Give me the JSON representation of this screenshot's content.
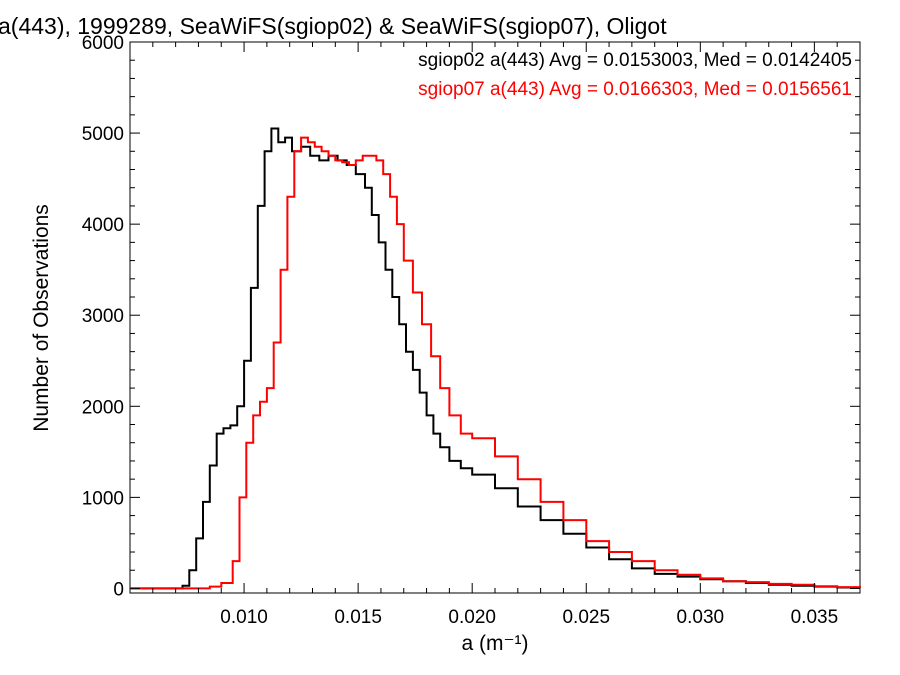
{
  "chart_data": {
    "type": "line",
    "title": "a(443), 1999289, SeaWiFS(sgiop02) & SeaWiFS(sgiop07), Oligot",
    "xlabel": "a (m⁻¹)",
    "ylabel": "Number of Observations",
    "xlim": [
      0.005,
      0.037
    ],
    "ylim": [
      -50,
      6000
    ],
    "xticks": [
      0.01,
      0.015,
      0.02,
      0.025,
      0.03,
      0.035
    ],
    "xtick_labels": [
      "0.010",
      "0.015",
      "0.020",
      "0.025",
      "0.030",
      "0.035"
    ],
    "yticks": [
      0,
      1000,
      2000,
      3000,
      4000,
      5000,
      6000
    ],
    "ytick_labels": [
      "0",
      "1000",
      "2000",
      "3000",
      "4000",
      "5000",
      "6000"
    ],
    "grid": false,
    "step": true,
    "legend": {
      "placement": "top-right",
      "entries": [
        "sgiop02 a(443) Avg = 0.0153003, Med = 0.0142405",
        "sgiop07 a(443) Avg = 0.0166303, Med = 0.0156561"
      ]
    },
    "series": [
      {
        "color": "#000000",
        "x": [
          0.005,
          0.007,
          0.0073,
          0.0076,
          0.0079,
          0.0082,
          0.0085,
          0.0088,
          0.0091,
          0.0094,
          0.0097,
          0.01,
          0.0103,
          0.0106,
          0.0109,
          0.0112,
          0.0115,
          0.0118,
          0.0121,
          0.0125,
          0.0129,
          0.0133,
          0.0137,
          0.0141,
          0.0145,
          0.0149,
          0.0153,
          0.0156,
          0.0159,
          0.0162,
          0.0165,
          0.0168,
          0.0171,
          0.0174,
          0.0177,
          0.018,
          0.0183,
          0.0186,
          0.019,
          0.0195,
          0.02,
          0.021,
          0.022,
          0.023,
          0.024,
          0.025,
          0.026,
          0.027,
          0.028,
          0.029,
          0.03,
          0.031,
          0.032,
          0.033,
          0.034,
          0.035,
          0.036,
          0.037
        ],
        "values": [
          0,
          0,
          30,
          200,
          550,
          950,
          1350,
          1700,
          1760,
          1790,
          2000,
          2500,
          3300,
          4200,
          4800,
          5050,
          4900,
          4950,
          4800,
          4850,
          4750,
          4700,
          4750,
          4700,
          4650,
          4550,
          4400,
          4100,
          3800,
          3500,
          3200,
          2900,
          2600,
          2400,
          2150,
          1900,
          1700,
          1550,
          1400,
          1320,
          1250,
          1100,
          900,
          750,
          600,
          450,
          320,
          220,
          160,
          130,
          100,
          80,
          60,
          40,
          30,
          20,
          10,
          5
        ]
      },
      {
        "color": "#ff0000",
        "x": [
          0.005,
          0.008,
          0.0085,
          0.009,
          0.0095,
          0.0098,
          0.0101,
          0.0104,
          0.0107,
          0.011,
          0.0113,
          0.0116,
          0.0119,
          0.0122,
          0.0125,
          0.0128,
          0.0131,
          0.0134,
          0.0137,
          0.014,
          0.0143,
          0.0146,
          0.0149,
          0.0152,
          0.0155,
          0.0158,
          0.0161,
          0.0164,
          0.0167,
          0.017,
          0.0174,
          0.0178,
          0.0182,
          0.0186,
          0.019,
          0.0195,
          0.02,
          0.021,
          0.022,
          0.023,
          0.024,
          0.025,
          0.026,
          0.027,
          0.028,
          0.029,
          0.03,
          0.031,
          0.032,
          0.033,
          0.034,
          0.035,
          0.036,
          0.037
        ],
        "values": [
          0,
          0,
          20,
          60,
          300,
          1000,
          1600,
          1900,
          2050,
          2200,
          2700,
          3500,
          4300,
          4800,
          4950,
          4900,
          4850,
          4800,
          4750,
          4700,
          4680,
          4650,
          4700,
          4750,
          4750,
          4700,
          4550,
          4300,
          4000,
          3600,
          3250,
          2900,
          2550,
          2200,
          1900,
          1700,
          1650,
          1450,
          1200,
          950,
          750,
          520,
          400,
          300,
          200,
          150,
          110,
          80,
          70,
          50,
          40,
          25,
          15,
          5
        ]
      }
    ]
  }
}
